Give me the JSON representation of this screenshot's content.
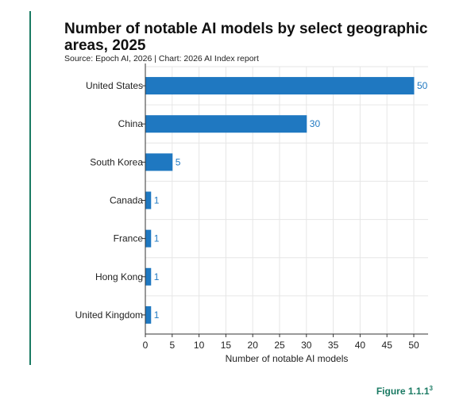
{
  "header": {
    "title": "Number of notable AI models by select geographic areas, 2025",
    "source": "Source: Epoch AI, 2026 | Chart: 2026 AI Index report"
  },
  "footer": {
    "figure_label": "Figure 1.1.1",
    "figure_superscript": "3"
  },
  "colors": {
    "bar": "#1f78c1",
    "accent": "#1a7a63",
    "grid": "#e6e6e6"
  },
  "chart_data": {
    "type": "bar",
    "orientation": "horizontal",
    "categories": [
      "United States",
      "China",
      "South Korea",
      "Canada",
      "France",
      "Hong Kong",
      "United Kingdom"
    ],
    "values": [
      50,
      30,
      5,
      1,
      1,
      1,
      1
    ],
    "xlabel": "Number of notable AI models",
    "ylabel": "",
    "xlim": [
      0,
      50
    ],
    "xticks": [
      0,
      5,
      10,
      15,
      20,
      25,
      30,
      35,
      40,
      45,
      50
    ],
    "grid": true,
    "data_labels": true
  }
}
